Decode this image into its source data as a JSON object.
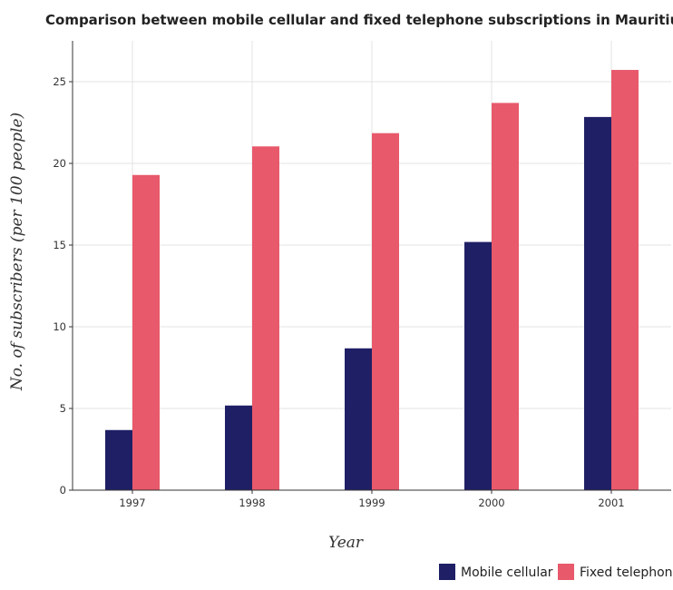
{
  "chart_data": {
    "type": "bar",
    "title": "Comparison between mobile cellular and fixed telephone subscriptions in Mauritius",
    "xlabel": "Year",
    "ylabel": "No. of subscribers (per 100 people)",
    "categories": [
      "1997",
      "1998",
      "1999",
      "2000",
      "2001"
    ],
    "series": [
      {
        "name": "Mobile cellular",
        "color": "#1f1f66",
        "values": [
          3.68,
          5.18,
          8.68,
          15.19,
          22.84
        ]
      },
      {
        "name": "Fixed telephone",
        "color": "#e8596b",
        "values": [
          19.29,
          21.04,
          21.85,
          23.7,
          25.72
        ]
      }
    ],
    "ylim": [
      0,
      27.5
    ],
    "yticks": [
      0,
      5,
      10,
      15,
      20,
      25
    ],
    "grid": true,
    "legend": "bottom-right"
  }
}
